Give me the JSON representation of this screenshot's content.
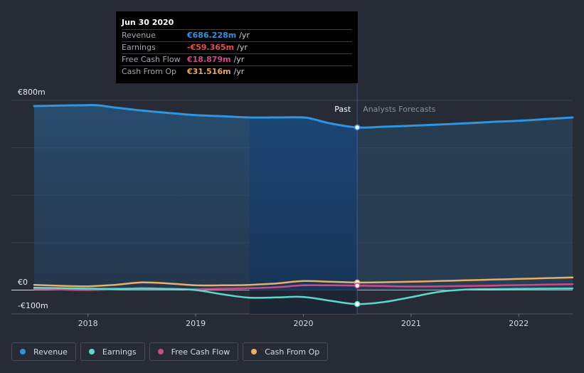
{
  "colors": {
    "revenue": "#2e95e0",
    "earnings": "#5ed8cb",
    "fcf": "#c94c86",
    "cfo": "#e8b066",
    "bg": "#262b36"
  },
  "tooltip": {
    "date": "Jun 30 2020",
    "rows": [
      {
        "label": "Revenue",
        "value": "€686.228m",
        "unit": "/yr",
        "color": "#2e95e0"
      },
      {
        "label": "Earnings",
        "value": "-€59.365m",
        "unit": "/yr",
        "color": "#f04c4c"
      },
      {
        "label": "Free Cash Flow",
        "value": "€18.879m",
        "unit": "/yr",
        "color": "#d1498c"
      },
      {
        "label": "Cash From Op",
        "value": "€31.516m",
        "unit": "/yr",
        "color": "#e8a85c"
      }
    ]
  },
  "legend": [
    {
      "label": "Revenue",
      "color": "#2e95e0"
    },
    {
      "label": "Earnings",
      "color": "#5ed8cb"
    },
    {
      "label": "Free Cash Flow",
      "color": "#c94c86"
    },
    {
      "label": "Cash From Op",
      "color": "#e8b066"
    }
  ],
  "chart_data": {
    "type": "line",
    "title": "",
    "xlabel": "",
    "ylabel": "",
    "ylim": [
      -100,
      800
    ],
    "y_tick_labels": [
      "€800m",
      "€0",
      "-€100m"
    ],
    "y_tick_values": [
      800,
      0,
      -100
    ],
    "x_ticks": [
      2018,
      2019,
      2020,
      2021,
      2022
    ],
    "xlim": [
      2017.5,
      2022.5
    ],
    "past_label": "Past",
    "forecast_label": "Analysts Forecasts",
    "highlight_range": [
      2019.5,
      2020.5
    ],
    "forecast_start": 2020.5,
    "series": [
      {
        "name": "Revenue",
        "color": "#2e95e0",
        "fill": true,
        "x": [
          2017.5,
          2017.75,
          2018.0,
          2018.1,
          2018.25,
          2018.5,
          2018.75,
          2019.0,
          2019.25,
          2019.5,
          2019.75,
          2020.0,
          2020.1,
          2020.25,
          2020.5,
          2020.75,
          2021.0,
          2021.25,
          2021.5,
          2021.75,
          2022.0,
          2022.25,
          2022.5
        ],
        "y": [
          776,
          778,
          780,
          779,
          770,
          757,
          747,
          738,
          733,
          728,
          728,
          728,
          720,
          703,
          686,
          689,
          693,
          698,
          703,
          709,
          714,
          721,
          728
        ]
      },
      {
        "name": "Earnings",
        "color": "#5ed8cb",
        "x": [
          2017.5,
          2017.75,
          2018.0,
          2018.25,
          2018.5,
          2018.75,
          2019.0,
          2019.25,
          2019.5,
          2019.75,
          2020.0,
          2020.25,
          2020.5,
          2020.75,
          2021.0,
          2021.25,
          2021.5,
          2021.75,
          2022.0,
          2022.25,
          2022.5
        ],
        "y": [
          10,
          8,
          6,
          5,
          6,
          5,
          0,
          -18,
          -32,
          -31,
          -29,
          -45,
          -59,
          -50,
          -30,
          -8,
          2,
          4,
          5,
          6,
          7
        ]
      },
      {
        "name": "Free Cash Flow",
        "color": "#c94c86",
        "x": [
          2017.5,
          2017.75,
          2018.0,
          2018.25,
          2018.5,
          2018.75,
          2019.0,
          2019.25,
          2019.5,
          2019.75,
          2020.0,
          2020.25,
          2020.5,
          2020.75,
          2021.0,
          2021.25,
          2021.5,
          2021.75,
          2022.0,
          2022.25,
          2022.5
        ],
        "y": [
          5,
          2,
          0,
          3,
          8,
          5,
          4,
          6,
          8,
          12,
          20,
          20,
          19,
          17,
          15,
          16,
          17,
          19,
          21,
          23,
          25
        ]
      },
      {
        "name": "Cash From Op",
        "color": "#e8b066",
        "x": [
          2017.5,
          2017.75,
          2018.0,
          2018.25,
          2018.5,
          2018.75,
          2019.0,
          2019.25,
          2019.5,
          2019.75,
          2020.0,
          2020.25,
          2020.5,
          2020.75,
          2021.0,
          2021.25,
          2021.5,
          2021.75,
          2022.0,
          2022.25,
          2022.5
        ],
        "y": [
          22,
          18,
          16,
          22,
          32,
          28,
          20,
          20,
          22,
          28,
          38,
          35,
          32,
          33,
          35,
          38,
          41,
          44,
          47,
          50,
          53
        ]
      }
    ]
  }
}
